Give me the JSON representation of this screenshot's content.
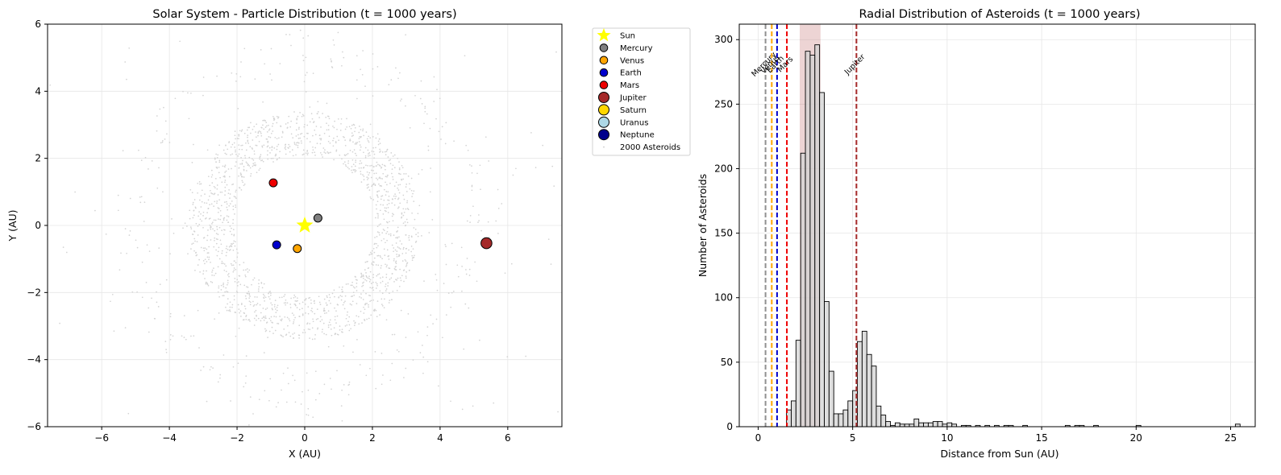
{
  "chart_data": [
    {
      "type": "scatter",
      "title": "Solar System - Particle Distribution (t = 1000 years)",
      "xlabel": "X (AU)",
      "ylabel": "Y (AU)",
      "xlim": [
        -7.6,
        7.6
      ],
      "ylim": [
        -6,
        6
      ],
      "xticks": [
        -6,
        -4,
        -2,
        0,
        2,
        4,
        6
      ],
      "yticks": [
        -6,
        -4,
        -2,
        0,
        2,
        4,
        6
      ],
      "grid": true,
      "legend_position": "outside-right",
      "bodies": [
        {
          "name": "Sun",
          "x": 0.0,
          "y": 0.0,
          "color": "#ffff00",
          "marker": "star"
        },
        {
          "name": "Mercury",
          "x": 0.39,
          "y": 0.22,
          "color": "#808080",
          "marker": "circle"
        },
        {
          "name": "Venus",
          "x": -0.22,
          "y": -0.69,
          "color": "#ffa500",
          "marker": "circle"
        },
        {
          "name": "Earth",
          "x": -0.83,
          "y": -0.58,
          "color": "#0000cd",
          "marker": "circle"
        },
        {
          "name": "Mars",
          "x": -0.93,
          "y": 1.27,
          "color": "#ee0000",
          "marker": "circle"
        },
        {
          "name": "Jupiter",
          "x": 5.37,
          "y": -0.53,
          "color": "#a52a2a",
          "marker": "circle-large"
        },
        {
          "name": "Saturn",
          "color": "#ffd700",
          "marker": "circle-large"
        },
        {
          "name": "Uranus",
          "color": "#add8e6",
          "marker": "circle-large"
        },
        {
          "name": "Neptune",
          "color": "#00008b",
          "marker": "circle-large"
        }
      ],
      "asteroids_label": "2000 Asteroids",
      "asteroid_count": 2000,
      "asteroid_color": "#d3d3d3"
    },
    {
      "type": "bar",
      "title": "Radial Distribution of Asteroids (t = 1000 years)",
      "xlabel": "Distance from Sun (AU)",
      "ylabel": "Number of Asteroids",
      "xlim": [
        -1.0,
        26.3
      ],
      "ylim": [
        0,
        312
      ],
      "xticks": [
        0,
        5,
        10,
        15,
        20,
        25
      ],
      "yticks": [
        0,
        50,
        100,
        150,
        200,
        250,
        300
      ],
      "grid": true,
      "bin_width": 0.25,
      "bins": [
        [
          1.5,
          13
        ],
        [
          1.75,
          20
        ],
        [
          2.0,
          67
        ],
        [
          2.25,
          212
        ],
        [
          2.5,
          291
        ],
        [
          2.75,
          288
        ],
        [
          3.0,
          296
        ],
        [
          3.25,
          259
        ],
        [
          3.5,
          97
        ],
        [
          3.75,
          43
        ],
        [
          4.0,
          10
        ],
        [
          4.25,
          10
        ],
        [
          4.5,
          13
        ],
        [
          4.75,
          20
        ],
        [
          5.0,
          28
        ],
        [
          5.25,
          66
        ],
        [
          5.5,
          74
        ],
        [
          5.75,
          56
        ],
        [
          6.0,
          47
        ],
        [
          6.25,
          16
        ],
        [
          6.5,
          9
        ],
        [
          6.75,
          4
        ],
        [
          7.0,
          1
        ],
        [
          7.25,
          3
        ],
        [
          7.5,
          2
        ],
        [
          7.75,
          2
        ],
        [
          8.0,
          2
        ],
        [
          8.25,
          6
        ],
        [
          8.5,
          3
        ],
        [
          8.75,
          3
        ],
        [
          9.0,
          3
        ],
        [
          9.25,
          4
        ],
        [
          9.5,
          4
        ],
        [
          9.75,
          2
        ],
        [
          10.0,
          3
        ],
        [
          10.25,
          2
        ],
        [
          10.75,
          1
        ],
        [
          11.0,
          1
        ],
        [
          11.5,
          1
        ],
        [
          12.0,
          1
        ],
        [
          12.5,
          1
        ],
        [
          13.0,
          1
        ],
        [
          13.25,
          1
        ],
        [
          14.0,
          1
        ],
        [
          16.25,
          1
        ],
        [
          16.75,
          1
        ],
        [
          17.0,
          1
        ],
        [
          17.75,
          1
        ],
        [
          20.0,
          1
        ],
        [
          25.25,
          2
        ]
      ],
      "bar_color": "#d3d3d3",
      "planet_lines": [
        {
          "name": "Mercury",
          "x": 0.39,
          "color": "#909090",
          "label_shown": true
        },
        {
          "name": "Venus",
          "x": 0.72,
          "color": "#ffa500",
          "label_shown": true
        },
        {
          "name": "Earth",
          "x": 1.0,
          "color": "#0000cd",
          "label_shown": true
        },
        {
          "name": "Mars",
          "x": 1.52,
          "color": "#ee0000",
          "label_shown": true
        },
        {
          "name": "Jupiter",
          "x": 5.2,
          "color": "#a52a2a",
          "label_shown": true
        }
      ],
      "shaded_region": {
        "x_from": 2.2,
        "x_to": 3.3,
        "color": "#a52a2a"
      }
    }
  ]
}
